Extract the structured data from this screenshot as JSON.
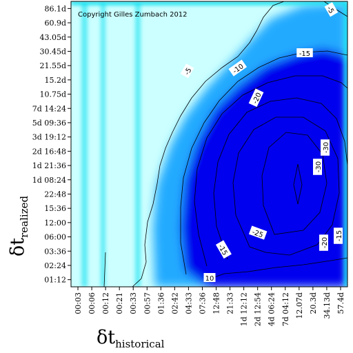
{
  "chart_data": {
    "type": "heatmap",
    "title": "",
    "annotation": "Copyright Gilles Zumbach 2012",
    "xlabel": {
      "symbol": "δt",
      "subscript": "historical"
    },
    "ylabel": {
      "symbol": "δt",
      "subscript": "realized"
    },
    "x_ticks": [
      "00:03",
      "00:06",
      "00:12",
      "00:21",
      "00:33",
      "00:57",
      "01:36",
      "02:42",
      "04:33",
      "07:36",
      "12:48",
      "21:33",
      "1d 12:12",
      "2d 12:54",
      "4d 06:24",
      "7d 04:12",
      "12.07d",
      "20.3d",
      "34.13d",
      "57.4d"
    ],
    "y_ticks": [
      "01:12",
      "02:24",
      "03:36",
      "06:00",
      "12:00",
      "15:36",
      "22:48",
      "1d 08:24",
      "1d 21:36",
      "2d 16:48",
      "3d 19:12",
      "5d 09:36",
      "7d 14:24",
      "10.75d",
      "15.2d",
      "21.55d",
      "30.45d",
      "43.05d",
      "60.9d",
      "86.1d"
    ],
    "contour_levels": [
      -5,
      -10,
      -15,
      -20,
      -25,
      -30
    ],
    "contour_labels": [
      "-5",
      "-5",
      "-10",
      "-15",
      "-20",
      "-25",
      "-15",
      "-20",
      "-15",
      "-30",
      "-30",
      "10"
    ],
    "peak": {
      "x": "12.07d",
      "y": "22:48",
      "value": -30
    },
    "colormap": {
      "low": "#0000ee",
      "mid": "#22aaff",
      "high": "#ccffff",
      "edge": "#00ddee"
    }
  }
}
